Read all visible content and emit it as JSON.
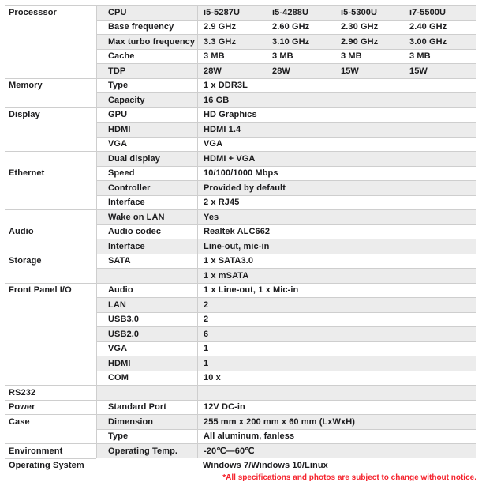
{
  "colors": {
    "text": "#1c1c1e",
    "border": "#cecece",
    "stripe": "#ececec",
    "footnote_red": "#f5232d",
    "background": "#ffffff"
  },
  "table": {
    "rows": [
      {
        "section": "Processsor",
        "key": "CPU",
        "values": [
          "i5-5287U",
          "i5-4288U",
          "i5-5300U",
          "i7-5500U"
        ],
        "full_line": true
      },
      {
        "section": "",
        "key": "Base frequency",
        "values": [
          "2.9 GHz",
          "2.60 GHz",
          "2.30 GHz",
          "2.40 GHz"
        ]
      },
      {
        "section": "",
        "key": "Max turbo frequency",
        "values": [
          "3.3 GHz",
          "3.10 GHz",
          "2.90 GHz",
          "3.00 GHz"
        ]
      },
      {
        "section": "",
        "key": "Cache",
        "values": [
          "3 MB",
          "3 MB",
          "3 MB",
          "3 MB"
        ]
      },
      {
        "section": "",
        "key": "TDP",
        "values": [
          "28W",
          "28W",
          "15W",
          "15W"
        ]
      },
      {
        "section": "Memory",
        "key": "Type",
        "values": [
          "1 x DDR3L"
        ],
        "full_line": true
      },
      {
        "section": "",
        "key": "Capacity",
        "values": [
          "16 GB"
        ]
      },
      {
        "section": "Display",
        "key": "GPU",
        "values": [
          "HD Graphics"
        ],
        "full_line": true
      },
      {
        "section": "",
        "key": "HDMI",
        "values": [
          "HDMI 1.4"
        ]
      },
      {
        "section": "",
        "key": "VGA",
        "values": [
          "VGA"
        ]
      },
      {
        "section": "",
        "key": "Dual display",
        "values": [
          "HDMI + VGA"
        ],
        "full_line": true
      },
      {
        "section": "Ethernet",
        "key": "Speed",
        "values": [
          "10/100/1000 Mbps"
        ]
      },
      {
        "section": "",
        "key": "Controller",
        "values": [
          "Provided by default"
        ]
      },
      {
        "section": "",
        "key": "Interface",
        "values": [
          "2 x RJ45"
        ]
      },
      {
        "section": "",
        "key": "Wake on LAN",
        "values": [
          "Yes"
        ],
        "full_line": true
      },
      {
        "section": "Audio",
        "key": "Audio codec",
        "values": [
          "Realtek ALC662"
        ]
      },
      {
        "section": "",
        "key": "Interface",
        "values": [
          "Line-out, mic-in"
        ]
      },
      {
        "section": "Storage",
        "key": "SATA",
        "values": [
          "1 x SATA3.0"
        ],
        "full_line": true
      },
      {
        "section": "",
        "key": "",
        "values": [
          "1 x mSATA"
        ]
      },
      {
        "section": "Front Panel I/O",
        "key": "Audio",
        "values": [
          "1 x Line-out, 1 x Mic-in"
        ],
        "full_line": true
      },
      {
        "section": "",
        "key": "LAN",
        "values": [
          "2"
        ]
      },
      {
        "section": "",
        "key": "USB3.0",
        "values": [
          "2"
        ]
      },
      {
        "section": "",
        "key": "USB2.0",
        "values": [
          "6"
        ]
      },
      {
        "section": "",
        "key": "VGA",
        "values": [
          "1"
        ]
      },
      {
        "section": "",
        "key": "HDMI",
        "values": [
          "1"
        ]
      },
      {
        "section": "",
        "key": "COM",
        "values": [
          "10 x"
        ]
      },
      {
        "section": "RS232",
        "key": "",
        "values": [
          ""
        ],
        "full_line": true
      },
      {
        "section": "Power",
        "key": "Standard Port",
        "values": [
          "12V DC-in"
        ],
        "full_line": true
      },
      {
        "section": "Case",
        "key": "Dimension",
        "values": [
          "255 mm x 200 mm x 60 mm (LxWxH)"
        ],
        "full_line": true
      },
      {
        "section": "",
        "key": "Type",
        "values": [
          "All aluminum, fanless"
        ]
      },
      {
        "section": "Environment",
        "key": "Operating Temp.",
        "values": [
          "-20℃—60℃"
        ],
        "full_line": true
      },
      {
        "section": "Operating System",
        "key": "",
        "values": [
          "Windows 7/Windows 10/Linux"
        ],
        "full_line": true,
        "plain": true
      }
    ],
    "footnote": "*All specifications and photos are subject to change without notice."
  }
}
